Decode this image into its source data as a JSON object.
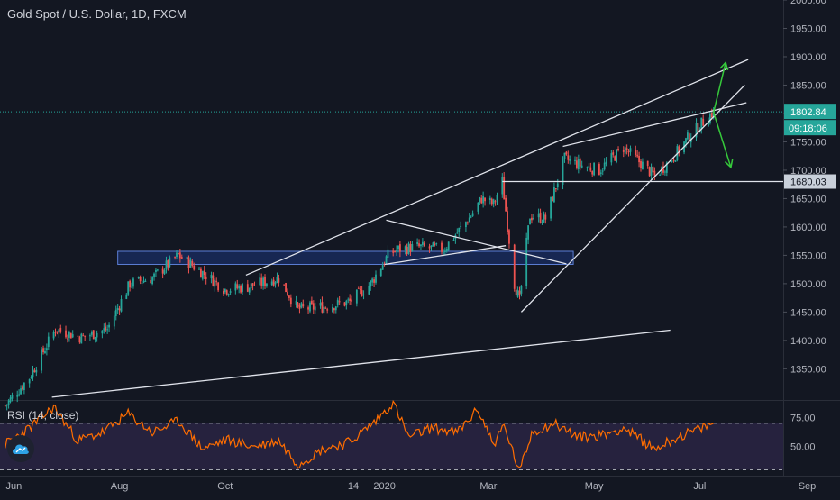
{
  "title": "Gold Spot / U.S. Dollar, 1D, FXCM",
  "rsi_label": "RSI (14, close)",
  "colors": {
    "background": "#131722",
    "up": "#26a69a",
    "down": "#ef5350",
    "drawing": "#e0e3eb",
    "arrow": "#36c93b",
    "rsi_line": "#ff6d00",
    "rsi_band": "#7e57c2",
    "support_box": "#2962ff",
    "price_label_bg": "#26a69a",
    "hline_label_bg": "#c9d0da",
    "axis_text": "#b2b5be"
  },
  "logo_icon": "tradingview-cloud-icon",
  "chart_data": [
    {
      "type": "candlestick",
      "title": "Gold Spot / U.S. Dollar, 1D, FXCM",
      "x_ticks": [
        "Jun",
        "Aug",
        "Oct",
        "14",
        "2020",
        "Mar",
        "May",
        "Jul",
        "Sep"
      ],
      "x_range": [
        "2019-05-24",
        "2020-09-20"
      ],
      "y_ticks": [
        "2000.00",
        "1950.00",
        "1900.00",
        "1850.00",
        "1800.00",
        "1750.00",
        "1700.00",
        "1650.00",
        "1600.00",
        "1550.00",
        "1500.00",
        "1450.00",
        "1400.00",
        "1350.00"
      ],
      "ylim": [
        1295,
        2000
      ],
      "last_price": "1802.84",
      "countdown": "09:18:06",
      "horizontal_line_label": "1680.03",
      "price_path": [
        {
          "date": "2019-05-27",
          "close": 1285
        },
        {
          "date": "2019-06-10",
          "close": 1335
        },
        {
          "date": "2019-06-25",
          "close": 1420
        },
        {
          "date": "2019-07-10",
          "close": 1405
        },
        {
          "date": "2019-07-25",
          "close": 1420
        },
        {
          "date": "2019-08-07",
          "close": 1500
        },
        {
          "date": "2019-08-20",
          "close": 1510
        },
        {
          "date": "2019-09-04",
          "close": 1550
        },
        {
          "date": "2019-09-20",
          "close": 1515
        },
        {
          "date": "2019-10-01",
          "close": 1490
        },
        {
          "date": "2019-10-15",
          "close": 1495
        },
        {
          "date": "2019-11-01",
          "close": 1510
        },
        {
          "date": "2019-11-12",
          "close": 1455
        },
        {
          "date": "2019-11-28",
          "close": 1460
        },
        {
          "date": "2019-12-12",
          "close": 1468
        },
        {
          "date": "2019-12-24",
          "close": 1500
        },
        {
          "date": "2020-01-03",
          "close": 1550
        },
        {
          "date": "2020-01-08",
          "close": 1560
        },
        {
          "date": "2020-01-20",
          "close": 1565
        },
        {
          "date": "2020-02-04",
          "close": 1560
        },
        {
          "date": "2020-02-20",
          "close": 1620
        },
        {
          "date": "2020-02-26",
          "close": 1650
        },
        {
          "date": "2020-03-04",
          "close": 1640
        },
        {
          "date": "2020-03-09",
          "close": 1680
        },
        {
          "date": "2020-03-16",
          "close": 1500
        },
        {
          "date": "2020-03-19",
          "close": 1470
        },
        {
          "date": "2020-03-25",
          "close": 1620
        },
        {
          "date": "2020-04-03",
          "close": 1615
        },
        {
          "date": "2020-04-14",
          "close": 1720
        },
        {
          "date": "2020-04-22",
          "close": 1710
        },
        {
          "date": "2020-05-04",
          "close": 1700
        },
        {
          "date": "2020-05-18",
          "close": 1740
        },
        {
          "date": "2020-06-05",
          "close": 1690
        },
        {
          "date": "2020-06-15",
          "close": 1720
        },
        {
          "date": "2020-06-25",
          "close": 1760
        },
        {
          "date": "2020-07-06",
          "close": 1795
        },
        {
          "date": "2020-07-09",
          "close": 1802.84
        }
      ],
      "annotations": {
        "support_zone": {
          "from": "2019-07-31",
          "to": "2020-04-19",
          "low": 1534,
          "high": 1557
        },
        "horizontal_line": {
          "from": "2020-03-09",
          "price": 1680.03
        },
        "trend_lines": [
          {
            "p1": {
              "date": "2019-10-13",
              "price": 1515
            },
            "p2": {
              "date": "2020-07-29",
              "price": 1895
            }
          },
          {
            "p1": {
              "date": "2020-04-13",
              "price": 1742
            },
            "p2": {
              "date": "2020-07-28",
              "price": 1819
            }
          },
          {
            "p1": {
              "date": "2020-03-20",
              "price": 1450
            },
            "p2": {
              "date": "2020-07-27",
              "price": 1850
            }
          },
          {
            "p1": {
              "date": "2019-06-23",
              "price": 1300
            },
            "p2": {
              "date": "2020-06-14",
              "price": 1418
            }
          },
          {
            "p1": {
              "date": "2020-01-02",
              "price": 1612
            },
            "p2": {
              "date": "2020-04-15",
              "price": 1535
            }
          },
          {
            "p1": {
              "date": "2020-01-01",
              "price": 1534
            },
            "p2": {
              "date": "2020-03-11",
              "price": 1567
            }
          }
        ],
        "arrows": [
          {
            "from": {
              "date": "2020-07-09",
              "price": 1802
            },
            "to": {
              "date": "2020-07-16",
              "price": 1890
            }
          },
          {
            "from": {
              "date": "2020-07-09",
              "price": 1802
            },
            "to": {
              "date": "2020-07-19",
              "price": 1705
            }
          }
        ]
      }
    },
    {
      "type": "line",
      "title": "RSI (14, close)",
      "y_ticks": [
        "75.00",
        "50.00"
      ],
      "ylim": [
        25,
        90
      ],
      "bands": [
        70,
        30
      ],
      "series": [
        {
          "name": "RSI (14, close)",
          "points": [
            {
              "date": "2019-05-27",
              "value": 52
            },
            {
              "date": "2019-06-10",
              "value": 66
            },
            {
              "date": "2019-06-24",
              "value": 84
            },
            {
              "date": "2019-07-08",
              "value": 55
            },
            {
              "date": "2019-07-22",
              "value": 62
            },
            {
              "date": "2019-08-06",
              "value": 78
            },
            {
              "date": "2019-08-20",
              "value": 62
            },
            {
              "date": "2019-09-04",
              "value": 72
            },
            {
              "date": "2019-09-18",
              "value": 48
            },
            {
              "date": "2019-10-02",
              "value": 56
            },
            {
              "date": "2019-10-17",
              "value": 50
            },
            {
              "date": "2019-11-01",
              "value": 55
            },
            {
              "date": "2019-11-12",
              "value": 35
            },
            {
              "date": "2019-11-27",
              "value": 48
            },
            {
              "date": "2019-12-12",
              "value": 54
            },
            {
              "date": "2019-12-27",
              "value": 72
            },
            {
              "date": "2020-01-06",
              "value": 88
            },
            {
              "date": "2020-01-15",
              "value": 58
            },
            {
              "date": "2020-01-28",
              "value": 66
            },
            {
              "date": "2020-02-12",
              "value": 62
            },
            {
              "date": "2020-02-24",
              "value": 82
            },
            {
              "date": "2020-03-04",
              "value": 52
            },
            {
              "date": "2020-03-10",
              "value": 68
            },
            {
              "date": "2020-03-19",
              "value": 28
            },
            {
              "date": "2020-03-26",
              "value": 62
            },
            {
              "date": "2020-04-08",
              "value": 70
            },
            {
              "date": "2020-04-22",
              "value": 58
            },
            {
              "date": "2020-05-06",
              "value": 60
            },
            {
              "date": "2020-05-18",
              "value": 66
            },
            {
              "date": "2020-06-05",
              "value": 48
            },
            {
              "date": "2020-06-18",
              "value": 58
            },
            {
              "date": "2020-07-01",
              "value": 65
            },
            {
              "date": "2020-07-09",
              "value": 70
            }
          ]
        }
      ]
    }
  ]
}
